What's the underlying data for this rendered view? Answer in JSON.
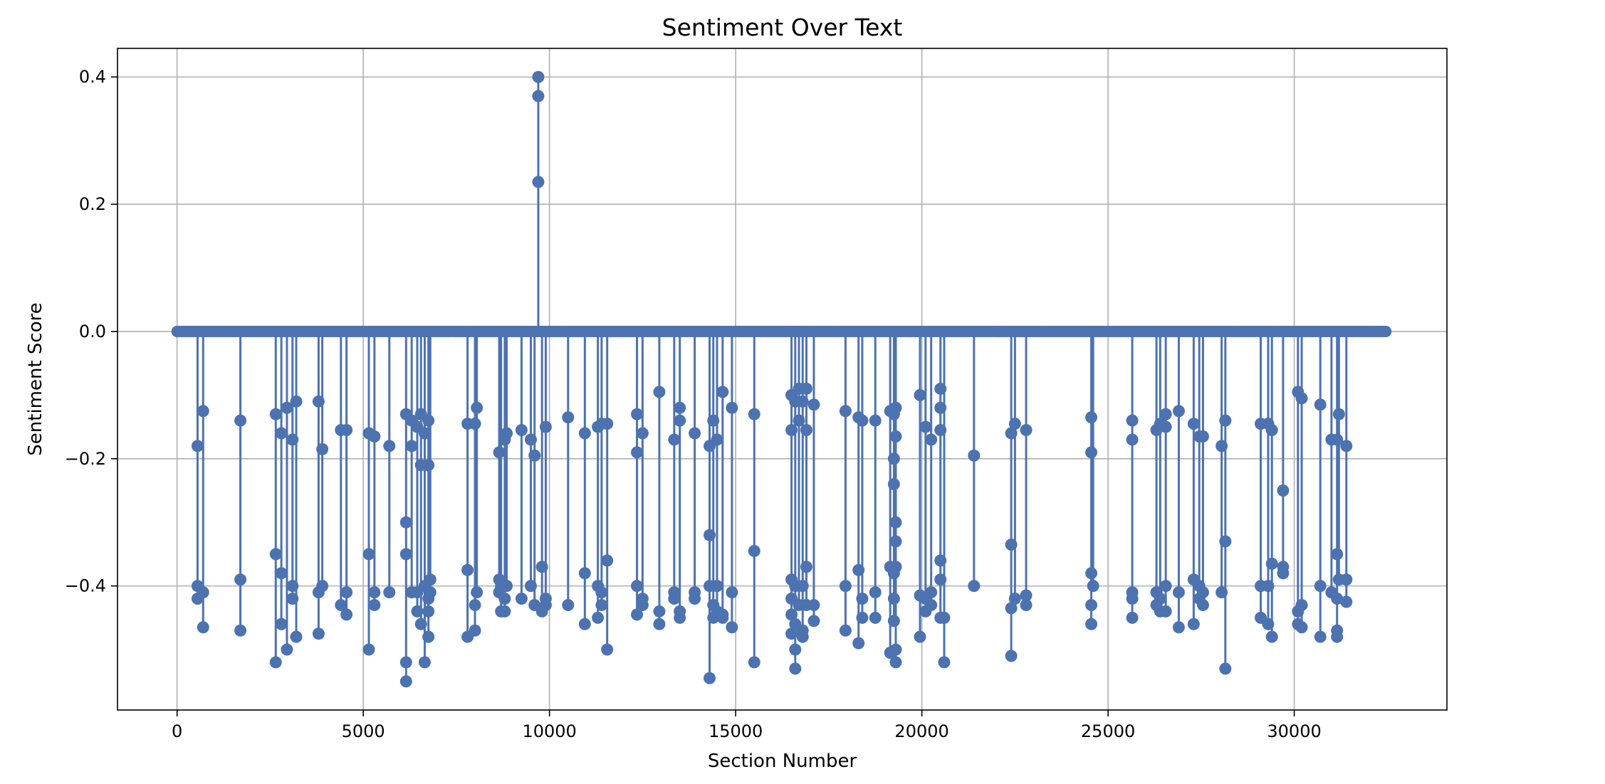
{
  "chart_data": {
    "type": "line",
    "title": "Sentiment Over Text",
    "xlabel": "Section Number",
    "ylabel": "Sentiment Score",
    "xlim": [
      -1600,
      34100
    ],
    "ylim": [
      -0.595,
      0.445
    ],
    "xticks": [
      0,
      5000,
      10000,
      15000,
      20000,
      25000,
      30000
    ],
    "yticks": [
      0.4,
      0.2,
      0.0,
      -0.2,
      -0.4
    ],
    "ytick_labels": [
      "0.4",
      "0.2",
      "0.0",
      "−0.2",
      "−0.4"
    ],
    "grid": true,
    "legend": "none",
    "colors": {
      "series": "#4c72b0",
      "grid": "#b0b0b0",
      "axes": "#000000"
    },
    "x_range": [
      0,
      32500
    ],
    "baseline": 0.0,
    "series": [
      {
        "marker": "circle",
        "events": [
          [
            550,
            [
              -0.18,
              -0.42,
              -0.4
            ]
          ],
          [
            700,
            [
              -0.125,
              -0.41,
              -0.465
            ]
          ],
          [
            1700,
            [
              -0.14,
              -0.39,
              -0.47
            ]
          ],
          [
            2650,
            [
              -0.13,
              -0.35,
              -0.52
            ]
          ],
          [
            2800,
            [
              -0.16,
              -0.38,
              -0.46
            ]
          ],
          [
            2950,
            [
              -0.12,
              -0.5
            ]
          ],
          [
            3100,
            [
              -0.17,
              -0.4,
              -0.42
            ]
          ],
          [
            3200,
            [
              -0.11,
              -0.48
            ]
          ],
          [
            3800,
            [
              -0.11,
              -0.41,
              -0.475
            ]
          ],
          [
            3900,
            [
              -0.185,
              -0.4
            ]
          ],
          [
            4400,
            [
              -0.155,
              -0.43
            ]
          ],
          [
            4550,
            [
              -0.155,
              -0.41,
              -0.445
            ]
          ],
          [
            5150,
            [
              -0.16,
              -0.35,
              -0.5
            ]
          ],
          [
            5300,
            [
              -0.165,
              -0.41,
              -0.43
            ]
          ],
          [
            5700,
            [
              -0.18,
              -0.41
            ]
          ],
          [
            6150,
            [
              -0.13,
              -0.3,
              -0.35,
              -0.52,
              -0.55
            ]
          ],
          [
            6300,
            [
              -0.14,
              -0.18,
              -0.41
            ]
          ],
          [
            6450,
            [
              -0.15,
              -0.41,
              -0.44
            ]
          ],
          [
            6550,
            [
              -0.13,
              -0.21,
              -0.46
            ]
          ],
          [
            6650,
            [
              -0.16,
              -0.4,
              -0.52
            ]
          ],
          [
            6750,
            [
              -0.14,
              -0.21,
              -0.42,
              -0.44,
              -0.48
            ]
          ],
          [
            6800,
            [
              -0.39,
              -0.41
            ]
          ],
          [
            7800,
            [
              -0.145,
              -0.375,
              -0.48
            ]
          ],
          [
            8000,
            [
              -0.145,
              -0.43,
              -0.47
            ]
          ],
          [
            8050,
            [
              -0.12,
              -0.41
            ]
          ],
          [
            8650,
            [
              -0.19,
              -0.41,
              -0.39
            ]
          ],
          [
            8700,
            [
              -0.4,
              -0.44
            ]
          ],
          [
            8800,
            [
              -0.17,
              -0.42,
              -0.44
            ]
          ],
          [
            8850,
            [
              -0.16,
              -0.4
            ]
          ],
          [
            9250,
            [
              -0.155,
              -0.42
            ]
          ],
          [
            9500,
            [
              -0.17,
              -0.4
            ]
          ],
          [
            9600,
            [
              -0.195,
              -0.43
            ]
          ],
          [
            9700,
            [
              0.235,
              0.37,
              0.4
            ]
          ],
          [
            9800,
            [
              -0.37,
              -0.44
            ]
          ],
          [
            9900,
            [
              -0.15,
              -0.42,
              -0.43
            ]
          ],
          [
            10500,
            [
              -0.135,
              -0.43
            ]
          ],
          [
            10950,
            [
              -0.16,
              -0.38,
              -0.46
            ]
          ],
          [
            11300,
            [
              -0.15,
              -0.4,
              -0.45
            ]
          ],
          [
            11400,
            [
              -0.145,
              -0.41,
              -0.43
            ]
          ],
          [
            11550,
            [
              -0.145,
              -0.36,
              -0.5
            ]
          ],
          [
            12350,
            [
              -0.13,
              -0.19,
              -0.4,
              -0.445
            ]
          ],
          [
            12500,
            [
              -0.16,
              -0.42,
              -0.43
            ]
          ],
          [
            12950,
            [
              -0.095,
              -0.44,
              -0.46
            ]
          ],
          [
            13350,
            [
              -0.17,
              -0.41,
              -0.42
            ]
          ],
          [
            13500,
            [
              -0.12,
              -0.14,
              -0.44,
              -0.45
            ]
          ],
          [
            13900,
            [
              -0.16,
              -0.41,
              -0.42
            ]
          ],
          [
            14300,
            [
              -0.18,
              -0.32,
              -0.4,
              -0.545
            ]
          ],
          [
            14400,
            [
              -0.14,
              -0.43,
              -0.45
            ]
          ],
          [
            14500,
            [
              -0.17,
              -0.4,
              -0.44
            ]
          ],
          [
            14650,
            [
              -0.095,
              -0.445,
              -0.45
            ]
          ],
          [
            14900,
            [
              -0.12,
              -0.41,
              -0.465
            ]
          ],
          [
            15500,
            [
              -0.13,
              -0.345,
              -0.52
            ]
          ],
          [
            16500,
            [
              -0.1,
              -0.155,
              -0.39,
              -0.42,
              -0.445,
              -0.475
            ]
          ],
          [
            16600,
            [
              -0.11,
              -0.4,
              -0.46,
              -0.5,
              -0.53
            ]
          ],
          [
            16700,
            [
              -0.09,
              -0.14,
              -0.43
            ]
          ],
          [
            16800,
            [
              -0.11,
              -0.4,
              -0.47,
              -0.48
            ]
          ],
          [
            16900,
            [
              -0.09,
              -0.155,
              -0.37,
              -0.43
            ]
          ],
          [
            17100,
            [
              -0.115,
              -0.43,
              -0.455
            ]
          ],
          [
            17950,
            [
              -0.125,
              -0.4,
              -0.47
            ]
          ],
          [
            18300,
            [
              -0.135,
              -0.375,
              -0.49
            ]
          ],
          [
            18400,
            [
              -0.14,
              -0.42,
              -0.45
            ]
          ],
          [
            18750,
            [
              -0.14,
              -0.41,
              -0.45
            ]
          ],
          [
            19150,
            [
              -0.125,
              -0.37,
              -0.505
            ]
          ],
          [
            19250,
            [
              -0.13,
              -0.2,
              -0.24,
              -0.38,
              -0.42,
              -0.455
            ]
          ],
          [
            19300,
            [
              -0.12,
              -0.165,
              -0.3,
              -0.33,
              -0.37,
              -0.5,
              -0.52
            ]
          ],
          [
            19950,
            [
              -0.1,
              -0.415,
              -0.48
            ]
          ],
          [
            20100,
            [
              -0.15,
              -0.42,
              -0.44
            ]
          ],
          [
            20250,
            [
              -0.17,
              -0.41,
              -0.43
            ]
          ],
          [
            20500,
            [
              -0.09,
              -0.12,
              -0.155,
              -0.36,
              -0.39,
              -0.45
            ]
          ],
          [
            20600,
            [
              -0.52,
              -0.45
            ]
          ],
          [
            21400,
            [
              -0.195,
              -0.4
            ]
          ],
          [
            22400,
            [
              -0.16,
              -0.335,
              -0.435,
              -0.51
            ]
          ],
          [
            22500,
            [
              -0.145,
              -0.42
            ]
          ],
          [
            22800,
            [
              -0.155,
              -0.415,
              -0.43
            ]
          ],
          [
            24550,
            [
              -0.135,
              -0.19,
              -0.38,
              -0.43,
              -0.46
            ]
          ],
          [
            24600,
            [
              -0.4
            ]
          ],
          [
            25650,
            [
              -0.14,
              -0.17,
              -0.41,
              -0.42,
              -0.45
            ]
          ],
          [
            26300,
            [
              -0.155,
              -0.41,
              -0.43
            ]
          ],
          [
            26400,
            [
              -0.145,
              -0.42,
              -0.44
            ]
          ],
          [
            26550,
            [
              -0.13,
              -0.15,
              -0.4,
              -0.44
            ]
          ],
          [
            26900,
            [
              -0.125,
              -0.41,
              -0.465
            ]
          ],
          [
            27300,
            [
              -0.145,
              -0.39,
              -0.46
            ]
          ],
          [
            27450,
            [
              -0.165,
              -0.4,
              -0.42
            ]
          ],
          [
            27550,
            [
              -0.165,
              -0.41,
              -0.43
            ]
          ],
          [
            28050,
            [
              -0.18,
              -0.41
            ]
          ],
          [
            28150,
            [
              -0.14,
              -0.33,
              -0.53
            ]
          ],
          [
            29100,
            [
              -0.145,
              -0.4,
              -0.45
            ]
          ],
          [
            29300,
            [
              -0.145,
              -0.4,
              -0.46
            ]
          ],
          [
            29400,
            [
              -0.155,
              -0.365,
              -0.48
            ]
          ],
          [
            29700,
            [
              -0.25,
              -0.37,
              -0.38
            ]
          ],
          [
            30100,
            [
              -0.095,
              -0.44,
              -0.46
            ]
          ],
          [
            30200,
            [
              -0.105,
              -0.43,
              -0.465
            ]
          ],
          [
            30700,
            [
              -0.115,
              -0.4,
              -0.48
            ]
          ],
          [
            31000,
            [
              -0.17,
              -0.41
            ]
          ],
          [
            31150,
            [
              -0.17,
              -0.35,
              -0.42,
              -0.47,
              -0.48
            ]
          ],
          [
            31200,
            [
              -0.13,
              -0.39
            ]
          ],
          [
            31400,
            [
              -0.18,
              -0.39,
              -0.425
            ]
          ]
        ]
      }
    ]
  }
}
